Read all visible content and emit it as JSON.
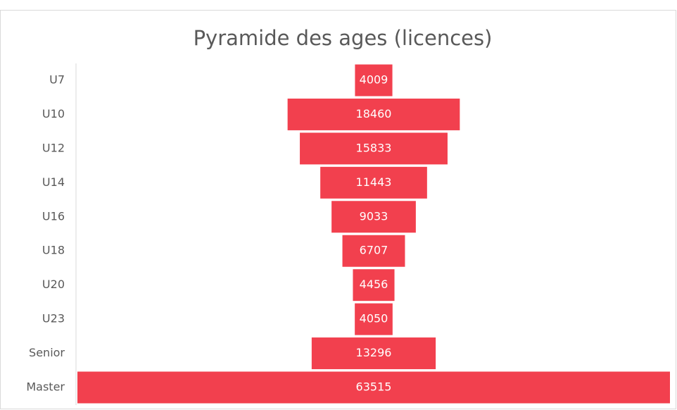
{
  "chart_data": {
    "type": "funnel",
    "title": "Pyramide des ages (licences)",
    "categories": [
      "U7",
      "U10",
      "U12",
      "U14",
      "U16",
      "U18",
      "U20",
      "U23",
      "Senior",
      "Master"
    ],
    "values": [
      4009,
      18460,
      15833,
      11443,
      9033,
      6707,
      4456,
      4050,
      13296,
      63515
    ],
    "color": "#f2404e"
  }
}
